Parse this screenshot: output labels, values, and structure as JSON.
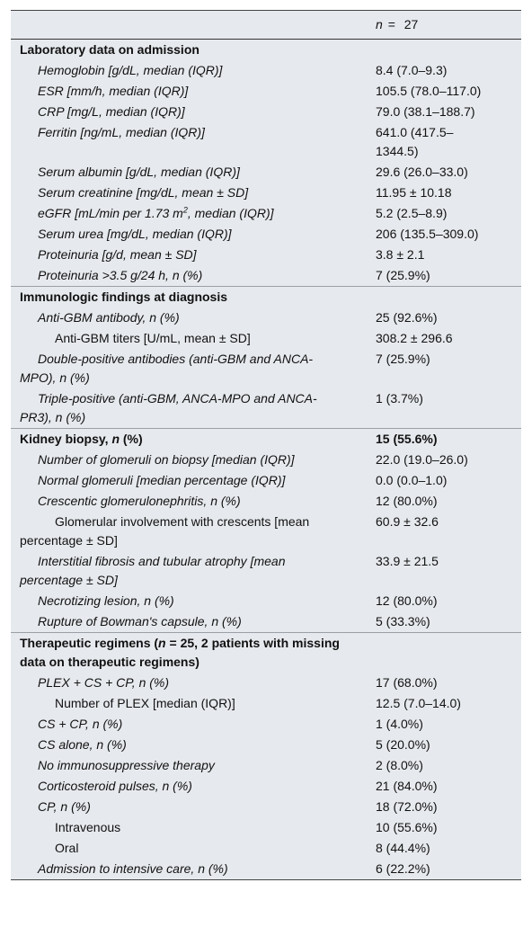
{
  "header": {
    "n": "n",
    "eq": "=",
    "value": "27"
  },
  "sections": [
    {
      "title": [
        "Laboratory data on admission"
      ],
      "rows": [
        {
          "label": [
            "Hemoglobin [g/dL, median (IQR)]"
          ],
          "value": "8.4 (7.0–9.3)"
        },
        {
          "label": [
            "ESR [mm/h, median (IQR)]"
          ],
          "value": "105.5 (78.0–117.0)"
        },
        {
          "label": [
            "CRP [mg/L, median (IQR)]"
          ],
          "value": "79.0 (38.1–188.7)"
        },
        {
          "label": [
            "Ferritin [ng/mL, median (IQR)]"
          ],
          "value": "641.0 (417.5–1344.5)"
        },
        {
          "label": [
            "Serum albumin [g/dL, median (IQR)]"
          ],
          "value": "29.6 (26.0–33.0)"
        },
        {
          "label": [
            "Serum creatinine [mg/dL, mean ± SD]"
          ],
          "value": "11.95 ± 10.18"
        },
        {
          "label": [
            "eGFR [mL/min per 1.73 m",
            {
              "sup": "2"
            },
            ", median (IQR)]"
          ],
          "value": "5.2 (2.5–8.9)"
        },
        {
          "label": [
            "Serum urea [mg/dL, median (IQR)]"
          ],
          "value": "206 (135.5–309.0)"
        },
        {
          "label": [
            "Proteinuria [g/d, mean ± SD]"
          ],
          "value": "3.8 ± 2.1"
        },
        {
          "label": [
            "Proteinuria >3.5 g/24 h, n (%)"
          ],
          "value": "7 (25.9%)"
        }
      ]
    },
    {
      "title": [
        "Immunologic findings at diagnosis"
      ],
      "rows": [
        {
          "label": [
            "Anti-GBM antibody, n (%)"
          ],
          "value": "25 (92.6%)",
          "subrows": [
            {
              "label": [
                "Anti-GBM titers [U/mL, mean ± SD]"
              ],
              "value": "308.2 ± 296.6"
            }
          ]
        },
        {
          "label": [
            "Double-positive antibodies (anti-GBM and ANCA-MPO), n (%)"
          ],
          "value": "7 (25.9%)"
        },
        {
          "label": [
            "Triple-positive (anti-GBM, ANCA-MPO and ANCA-PR3), n (%)"
          ],
          "value": "1 (3.7%)"
        }
      ]
    },
    {
      "title": [
        "Kidney biopsy, ",
        {
          "italic": "n"
        },
        " (%)"
      ],
      "value": "15 (55.6%)",
      "rows": [
        {
          "label": [
            "Number of glomeruli on biopsy [median (IQR)]"
          ],
          "value": "22.0 (19.0–26.0)"
        },
        {
          "label": [
            "Normal glomeruli [median percentage (IQR)]"
          ],
          "value": "0.0 (0.0–1.0)"
        },
        {
          "label": [
            "Crescentic glomerulonephritis, n (%)"
          ],
          "value": "12 (80.0%)",
          "subrows": [
            {
              "label": [
                "Glomerular involvement with crescents [mean percentage ± SD]"
              ],
              "value": "60.9 ± 32.6"
            }
          ]
        },
        {
          "label": [
            "Interstitial fibrosis and tubular atrophy [mean percentage ± SD]"
          ],
          "value": "33.9 ± 21.5"
        },
        {
          "label": [
            "Necrotizing lesion, n (%)"
          ],
          "value": "12 (80.0%)"
        },
        {
          "label": [
            "Rupture of Bowman's capsule, n (%)"
          ],
          "value": "5 (33.3%)"
        }
      ]
    },
    {
      "title": [
        "Therapeutic regimens (",
        {
          "italic": "n"
        },
        " = 25, 2 patients with missing data on therapeutic regimens)"
      ],
      "rows": [
        {
          "label": [
            "PLEX + CS + CP, n (%)"
          ],
          "value": "17 (68.0%)",
          "subrows": [
            {
              "label": [
                "Number of PLEX [median (IQR)]"
              ],
              "value": "12.5 (7.0–14.0)"
            }
          ]
        },
        {
          "label": [
            "CS + CP, n (%)"
          ],
          "value": "1 (4.0%)"
        },
        {
          "label": [
            "CS alone, n (%)"
          ],
          "value": "5 (20.0%)"
        },
        {
          "label": [
            "No immunosuppressive therapy"
          ],
          "value": "2 (8.0%)"
        },
        {
          "label": [
            "Corticosteroid pulses, n (%)"
          ],
          "value": "21 (84.0%)"
        },
        {
          "label": [
            "CP, n (%)"
          ],
          "value": "18 (72.0%)",
          "subrows": [
            {
              "label": [
                "Intravenous"
              ],
              "value": "10 (55.6%)"
            },
            {
              "label": [
                "Oral"
              ],
              "value": "8 (44.4%)"
            }
          ]
        },
        {
          "label": [
            "Admission to intensive care, n (%)"
          ],
          "value": "6 (22.2%)"
        }
      ]
    }
  ]
}
